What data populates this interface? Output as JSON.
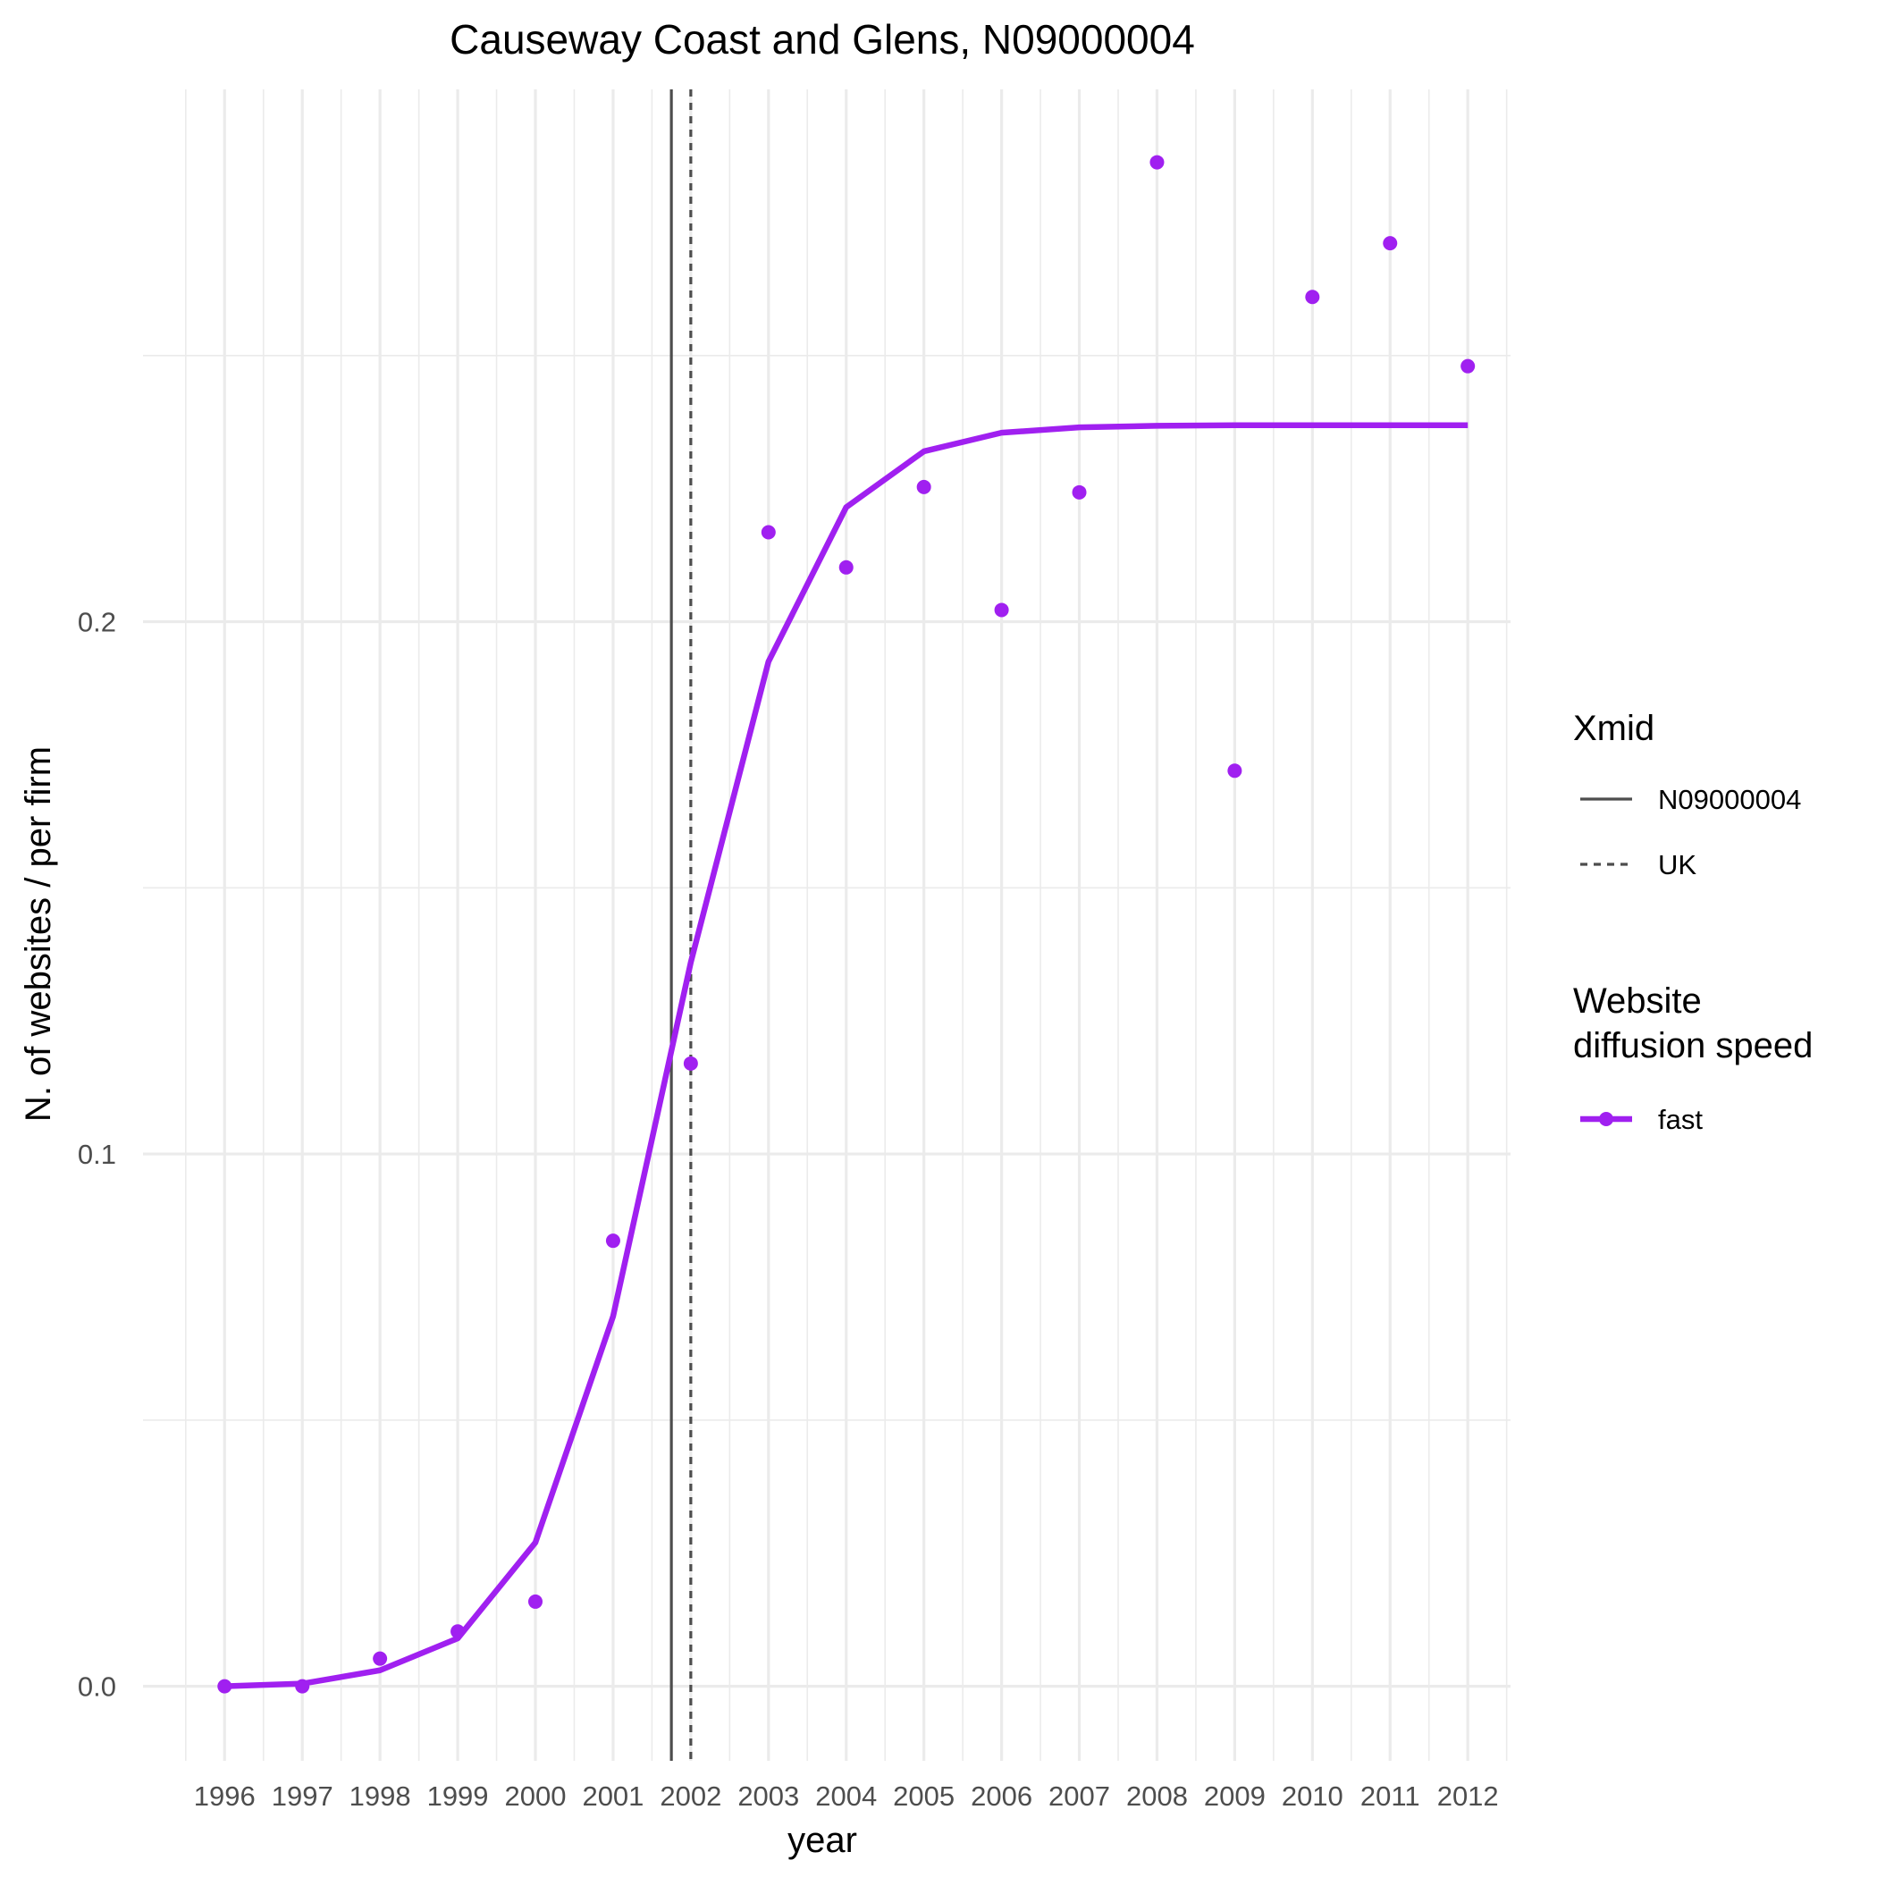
{
  "chart_data": {
    "type": "line",
    "title": "Causeway Coast and Glens, N09000004",
    "xlabel": "year",
    "ylabel": "N. of websites / per firm",
    "x": [
      1996,
      1997,
      1998,
      1999,
      2000,
      2001,
      2002,
      2003,
      2004,
      2005,
      2006,
      2007,
      2008,
      2009,
      2010,
      2011,
      2012
    ],
    "xlim": [
      1994.95,
      2012.55
    ],
    "ylim": [
      -0.014,
      0.3
    ],
    "y_ticks": [
      0.0,
      0.1,
      0.2
    ],
    "y_tick_labels": [
      "0.0",
      "0.1",
      "0.2"
    ],
    "grid": true,
    "series": [
      {
        "name": "fast",
        "color": "#A020F0",
        "points": [
          0.0,
          0.0,
          0.0052,
          0.0103,
          0.0159,
          0.0837,
          0.117,
          0.2168,
          0.2102,
          0.2253,
          0.2022,
          0.2243,
          0.2863,
          0.172,
          0.261,
          0.2711,
          0.248
        ],
        "fitted": [
          0.0,
          0.0005,
          0.003,
          0.009,
          0.027,
          0.0695,
          0.136,
          0.1925,
          0.2215,
          0.232,
          0.2355,
          0.2365,
          0.2368,
          0.2369,
          0.2369,
          0.2369,
          0.2369
        ]
      }
    ],
    "vlines": [
      {
        "name": "N09000004",
        "x": 2001.75,
        "style": "solid",
        "color": "#4d4d4d"
      },
      {
        "name": "UK",
        "x": 2002.0,
        "style": "dotted",
        "color": "#4d4d4d"
      }
    ],
    "legend": {
      "position": "right",
      "groups": [
        {
          "title": [
            "Xmid"
          ],
          "entries": [
            "N09000004",
            "UK"
          ]
        },
        {
          "title": [
            "Website",
            "diffusion speed"
          ],
          "entries": [
            "fast"
          ]
        }
      ]
    }
  }
}
